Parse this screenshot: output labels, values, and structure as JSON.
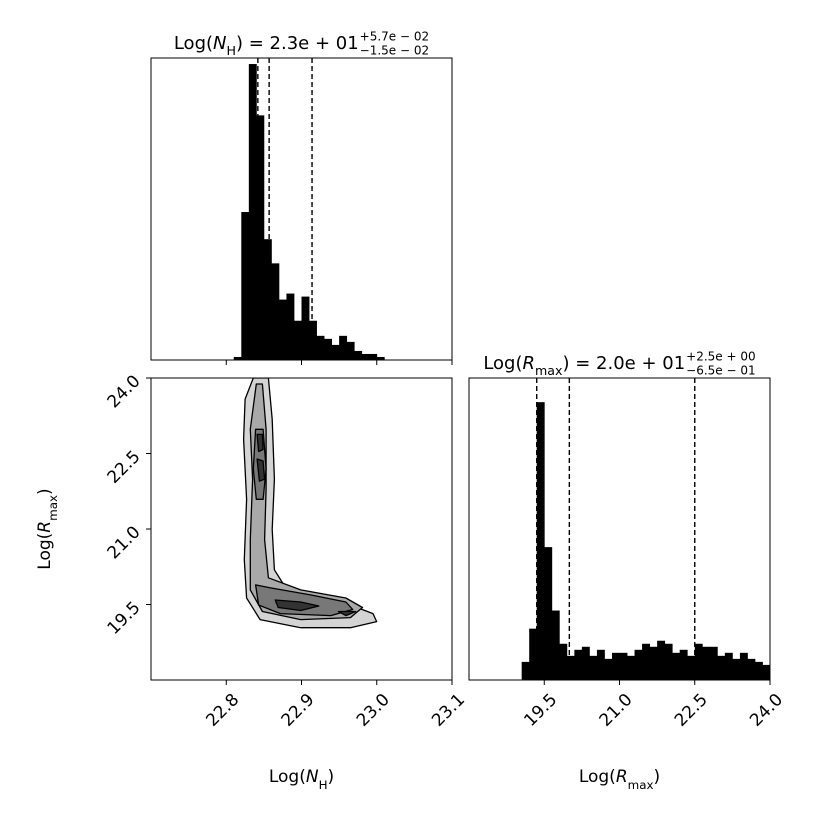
{
  "chart_data": [
    {
      "type": "histogram",
      "title": {
        "prefix": "Log(",
        "symbol": "N",
        "subscript": "H",
        "suffix": ") = 2.3e + 01",
        "upper": "+5.7e − 02",
        "lower": "−1.5e − 02"
      },
      "xlim": [
        22.7,
        23.1
      ],
      "ylim": [
        0,
        100
      ],
      "color": "#000000",
      "bins": [
        22.81,
        22.82,
        22.83,
        22.84,
        22.85,
        22.86,
        22.87,
        22.88,
        22.89,
        22.9,
        22.91,
        22.92,
        22.93,
        22.94,
        22.95,
        22.96,
        22.97,
        22.98,
        22.99,
        23.0,
        23.01
      ],
      "values": [
        1,
        49,
        98,
        81,
        40,
        32,
        20,
        22,
        13,
        21,
        13,
        8,
        7,
        5,
        8,
        6,
        3,
        2,
        2,
        1
      ],
      "quantiles": [
        22.842,
        22.857,
        22.914
      ]
    },
    {
      "type": "contour",
      "xlabel": {
        "prefix": "Log(",
        "symbol": "N",
        "subscript": "H",
        "suffix": ")"
      },
      "ylabel": {
        "prefix": "Log(",
        "symbol": "R",
        "subscript": "max",
        "suffix": ")"
      },
      "xlim": [
        22.7,
        23.1
      ],
      "ylim": [
        18.0,
        24.0
      ],
      "xticks": [
        22.8,
        22.9,
        {
          "value": 23,
          "label": "23.0"
        },
        23.1
      ],
      "yticks": [
        19.5,
        {
          "value": 21,
          "label": "21.0"
        },
        22.5,
        {
          "value": 24,
          "label": "24.0"
        }
      ],
      "levels": [
        {
          "color": "#d4d4d4",
          "polygons": [
            {
              "x": [
                22.836,
                22.856,
                22.861,
                22.864,
                22.861,
                22.864,
                22.879,
                22.925,
                22.965,
                22.995,
                23.0,
                22.965,
                22.899,
                22.845,
                22.827,
                22.824,
                22.827,
                22.823,
                22.825
              ],
              "y": [
                24.0,
                24.0,
                23.18,
                21.99,
                20.99,
                20.19,
                19.83,
                19.63,
                19.49,
                19.32,
                19.16,
                19.04,
                19.04,
                19.2,
                19.63,
                20.39,
                21.59,
                22.78,
                23.58
              ]
            }
          ]
        },
        {
          "color": "#a9a9a9",
          "polygons": [
            {
              "x": [
                22.84,
                22.848,
                22.853,
                22.853,
                22.851,
                22.856,
                22.899,
                22.959,
                22.981,
                22.965,
                22.899,
                22.848,
                22.832,
                22.832,
                22.835,
                22.832
              ],
              "y": [
                23.88,
                23.88,
                22.98,
                21.79,
                20.79,
                20.03,
                19.79,
                19.63,
                19.44,
                19.24,
                19.2,
                19.36,
                19.79,
                20.79,
                21.99,
                22.98
              ]
            }
          ]
        },
        {
          "color": "#787878",
          "polygons": [
            {
              "x": [
                22.839,
                22.849,
                22.853,
                22.849,
                22.84,
                22.836
              ],
              "y": [
                22.98,
                22.98,
                22.19,
                21.59,
                21.59,
                22.19
              ]
            },
            {
              "x": [
                22.839,
                22.859,
                22.912,
                22.959,
                22.968,
                22.939,
                22.872,
                22.843
              ],
              "y": [
                19.89,
                19.83,
                19.69,
                19.55,
                19.4,
                19.28,
                19.32,
                19.49
              ]
            }
          ]
        },
        {
          "color": "#333333",
          "polygons": [
            {
              "x": [
                22.841,
                22.848,
                22.849,
                22.843
              ],
              "y": [
                22.88,
                22.88,
                22.58,
                22.54
              ]
            },
            {
              "x": [
                22.841,
                22.849,
                22.851,
                22.844
              ],
              "y": [
                22.39,
                22.35,
                21.99,
                21.95
              ]
            },
            {
              "x": [
                22.865,
                22.899,
                22.923,
                22.899,
                22.869
              ],
              "y": [
                19.59,
                19.55,
                19.47,
                19.38,
                19.44
              ]
            },
            {
              "x": [
                22.949,
                22.972,
                22.959
              ],
              "y": [
                19.36,
                19.36,
                19.28
              ]
            }
          ]
        }
      ]
    },
    {
      "type": "histogram",
      "title": {
        "prefix": "Log(",
        "symbol": "R",
        "subscript": "max",
        "suffix": ") = 2.0e + 01",
        "upper": "+2.5e + 00",
        "lower": "−6.5e − 01"
      },
      "xlabel": {
        "prefix": "Log(",
        "symbol": "R",
        "subscript": "max",
        "suffix": ")"
      },
      "xlim": [
        18.0,
        24.0
      ],
      "ylim": [
        0,
        100
      ],
      "color": "#000000",
      "xticks": [
        19.5,
        {
          "value": 21,
          "label": "21.0"
        },
        22.5,
        {
          "value": 24,
          "label": "24.0"
        }
      ],
      "bins": [
        19.05,
        19.2,
        19.35,
        19.5,
        19.65,
        19.8,
        19.95,
        20.1,
        20.25,
        20.4,
        20.55,
        20.7,
        20.85,
        21.0,
        21.15,
        21.3,
        21.45,
        21.6,
        21.75,
        21.9,
        22.05,
        22.2,
        22.35,
        22.5,
        22.65,
        22.8,
        22.95,
        23.1,
        23.25,
        23.4,
        23.55,
        23.7,
        23.85,
        24.0
      ],
      "values": [
        6,
        17,
        92,
        44,
        23,
        12,
        8,
        10,
        11,
        8,
        10,
        7,
        9,
        9,
        8,
        10,
        12,
        11,
        13,
        12,
        9,
        10,
        8,
        12,
        11,
        11,
        8,
        9,
        7,
        9,
        7,
        6,
        5
      ],
      "quantiles": [
        19.35,
        20.0,
        22.5
      ]
    }
  ]
}
